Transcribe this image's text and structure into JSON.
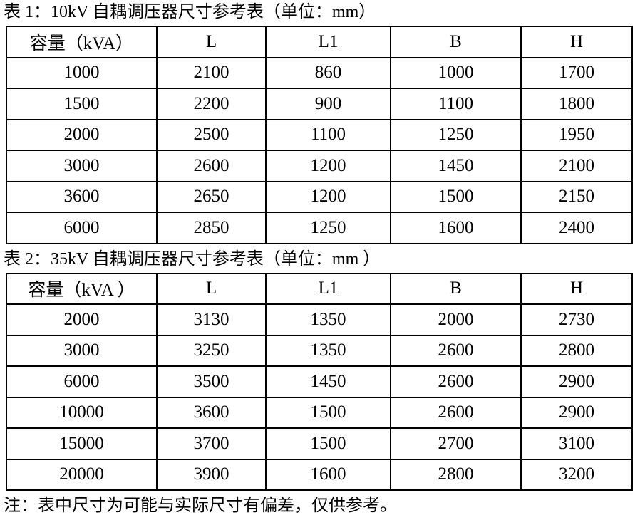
{
  "page": {
    "background_color": "#ffffff",
    "text_color": "#000000",
    "border_color": "#000000"
  },
  "table1": {
    "title": "表 1：10kV 自耦调压器尺寸参考表（单位：mm）",
    "headers": [
      "容量（kVA）",
      "L",
      "L1",
      "B",
      "H"
    ],
    "rows": [
      [
        "1000",
        "2100",
        "860",
        "1000",
        "1700"
      ],
      [
        "1500",
        "2200",
        "900",
        "1100",
        "1800"
      ],
      [
        "2000",
        "2500",
        "1100",
        "1250",
        "1950"
      ],
      [
        "3000",
        "2600",
        "1200",
        "1450",
        "2100"
      ],
      [
        "3600",
        "2650",
        "1200",
        "1500",
        "2150"
      ],
      [
        "6000",
        "2850",
        "1250",
        "1600",
        "2400"
      ]
    ]
  },
  "table2": {
    "title": "表 2：35kV 自耦调压器尺寸参考表（单位：mm ）",
    "headers": [
      "容量（kVA ）",
      "L",
      "L1",
      "B",
      "H"
    ],
    "rows": [
      [
        "2000",
        "3130",
        "1350",
        "2000",
        "2730"
      ],
      [
        "3000",
        "3250",
        "1350",
        "2600",
        "2800"
      ],
      [
        "6000",
        "3500",
        "1450",
        "2600",
        "2900"
      ],
      [
        "10000",
        "3600",
        "1500",
        "2600",
        "2900"
      ],
      [
        "15000",
        "3700",
        "1500",
        "2700",
        "3100"
      ],
      [
        "20000",
        "3900",
        "1600",
        "2800",
        "3200"
      ]
    ]
  },
  "note": "注：表中尺寸为可能与实际尺寸有偏差，仅供参考。"
}
